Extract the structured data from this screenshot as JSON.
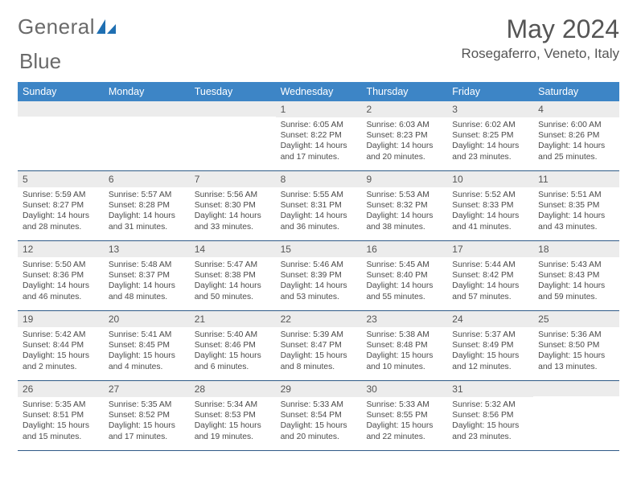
{
  "brand": {
    "name_left": "General",
    "name_right": "Blue"
  },
  "title": "May 2024",
  "location": "Rosegaferro, Veneto, Italy",
  "colors": {
    "header_bg": "#3d85c6",
    "header_text": "#ffffff",
    "daynum_bg": "#ececec",
    "rule": "#2e5a87",
    "text": "#4a4a4a",
    "logo_blue": "#1f6fb2"
  },
  "day_headers": [
    "Sunday",
    "Monday",
    "Tuesday",
    "Wednesday",
    "Thursday",
    "Friday",
    "Saturday"
  ],
  "weeks": [
    [
      {
        "n": "",
        "lines": []
      },
      {
        "n": "",
        "lines": []
      },
      {
        "n": "",
        "lines": []
      },
      {
        "n": "1",
        "lines": [
          "Sunrise: 6:05 AM",
          "Sunset: 8:22 PM",
          "Daylight: 14 hours",
          "and 17 minutes."
        ]
      },
      {
        "n": "2",
        "lines": [
          "Sunrise: 6:03 AM",
          "Sunset: 8:23 PM",
          "Daylight: 14 hours",
          "and 20 minutes."
        ]
      },
      {
        "n": "3",
        "lines": [
          "Sunrise: 6:02 AM",
          "Sunset: 8:25 PM",
          "Daylight: 14 hours",
          "and 23 minutes."
        ]
      },
      {
        "n": "4",
        "lines": [
          "Sunrise: 6:00 AM",
          "Sunset: 8:26 PM",
          "Daylight: 14 hours",
          "and 25 minutes."
        ]
      }
    ],
    [
      {
        "n": "5",
        "lines": [
          "Sunrise: 5:59 AM",
          "Sunset: 8:27 PM",
          "Daylight: 14 hours",
          "and 28 minutes."
        ]
      },
      {
        "n": "6",
        "lines": [
          "Sunrise: 5:57 AM",
          "Sunset: 8:28 PM",
          "Daylight: 14 hours",
          "and 31 minutes."
        ]
      },
      {
        "n": "7",
        "lines": [
          "Sunrise: 5:56 AM",
          "Sunset: 8:30 PM",
          "Daylight: 14 hours",
          "and 33 minutes."
        ]
      },
      {
        "n": "8",
        "lines": [
          "Sunrise: 5:55 AM",
          "Sunset: 8:31 PM",
          "Daylight: 14 hours",
          "and 36 minutes."
        ]
      },
      {
        "n": "9",
        "lines": [
          "Sunrise: 5:53 AM",
          "Sunset: 8:32 PM",
          "Daylight: 14 hours",
          "and 38 minutes."
        ]
      },
      {
        "n": "10",
        "lines": [
          "Sunrise: 5:52 AM",
          "Sunset: 8:33 PM",
          "Daylight: 14 hours",
          "and 41 minutes."
        ]
      },
      {
        "n": "11",
        "lines": [
          "Sunrise: 5:51 AM",
          "Sunset: 8:35 PM",
          "Daylight: 14 hours",
          "and 43 minutes."
        ]
      }
    ],
    [
      {
        "n": "12",
        "lines": [
          "Sunrise: 5:50 AM",
          "Sunset: 8:36 PM",
          "Daylight: 14 hours",
          "and 46 minutes."
        ]
      },
      {
        "n": "13",
        "lines": [
          "Sunrise: 5:48 AM",
          "Sunset: 8:37 PM",
          "Daylight: 14 hours",
          "and 48 minutes."
        ]
      },
      {
        "n": "14",
        "lines": [
          "Sunrise: 5:47 AM",
          "Sunset: 8:38 PM",
          "Daylight: 14 hours",
          "and 50 minutes."
        ]
      },
      {
        "n": "15",
        "lines": [
          "Sunrise: 5:46 AM",
          "Sunset: 8:39 PM",
          "Daylight: 14 hours",
          "and 53 minutes."
        ]
      },
      {
        "n": "16",
        "lines": [
          "Sunrise: 5:45 AM",
          "Sunset: 8:40 PM",
          "Daylight: 14 hours",
          "and 55 minutes."
        ]
      },
      {
        "n": "17",
        "lines": [
          "Sunrise: 5:44 AM",
          "Sunset: 8:42 PM",
          "Daylight: 14 hours",
          "and 57 minutes."
        ]
      },
      {
        "n": "18",
        "lines": [
          "Sunrise: 5:43 AM",
          "Sunset: 8:43 PM",
          "Daylight: 14 hours",
          "and 59 minutes."
        ]
      }
    ],
    [
      {
        "n": "19",
        "lines": [
          "Sunrise: 5:42 AM",
          "Sunset: 8:44 PM",
          "Daylight: 15 hours",
          "and 2 minutes."
        ]
      },
      {
        "n": "20",
        "lines": [
          "Sunrise: 5:41 AM",
          "Sunset: 8:45 PM",
          "Daylight: 15 hours",
          "and 4 minutes."
        ]
      },
      {
        "n": "21",
        "lines": [
          "Sunrise: 5:40 AM",
          "Sunset: 8:46 PM",
          "Daylight: 15 hours",
          "and 6 minutes."
        ]
      },
      {
        "n": "22",
        "lines": [
          "Sunrise: 5:39 AM",
          "Sunset: 8:47 PM",
          "Daylight: 15 hours",
          "and 8 minutes."
        ]
      },
      {
        "n": "23",
        "lines": [
          "Sunrise: 5:38 AM",
          "Sunset: 8:48 PM",
          "Daylight: 15 hours",
          "and 10 minutes."
        ]
      },
      {
        "n": "24",
        "lines": [
          "Sunrise: 5:37 AM",
          "Sunset: 8:49 PM",
          "Daylight: 15 hours",
          "and 12 minutes."
        ]
      },
      {
        "n": "25",
        "lines": [
          "Sunrise: 5:36 AM",
          "Sunset: 8:50 PM",
          "Daylight: 15 hours",
          "and 13 minutes."
        ]
      }
    ],
    [
      {
        "n": "26",
        "lines": [
          "Sunrise: 5:35 AM",
          "Sunset: 8:51 PM",
          "Daylight: 15 hours",
          "and 15 minutes."
        ]
      },
      {
        "n": "27",
        "lines": [
          "Sunrise: 5:35 AM",
          "Sunset: 8:52 PM",
          "Daylight: 15 hours",
          "and 17 minutes."
        ]
      },
      {
        "n": "28",
        "lines": [
          "Sunrise: 5:34 AM",
          "Sunset: 8:53 PM",
          "Daylight: 15 hours",
          "and 19 minutes."
        ]
      },
      {
        "n": "29",
        "lines": [
          "Sunrise: 5:33 AM",
          "Sunset: 8:54 PM",
          "Daylight: 15 hours",
          "and 20 minutes."
        ]
      },
      {
        "n": "30",
        "lines": [
          "Sunrise: 5:33 AM",
          "Sunset: 8:55 PM",
          "Daylight: 15 hours",
          "and 22 minutes."
        ]
      },
      {
        "n": "31",
        "lines": [
          "Sunrise: 5:32 AM",
          "Sunset: 8:56 PM",
          "Daylight: 15 hours",
          "and 23 minutes."
        ]
      },
      {
        "n": "",
        "lines": []
      }
    ]
  ]
}
